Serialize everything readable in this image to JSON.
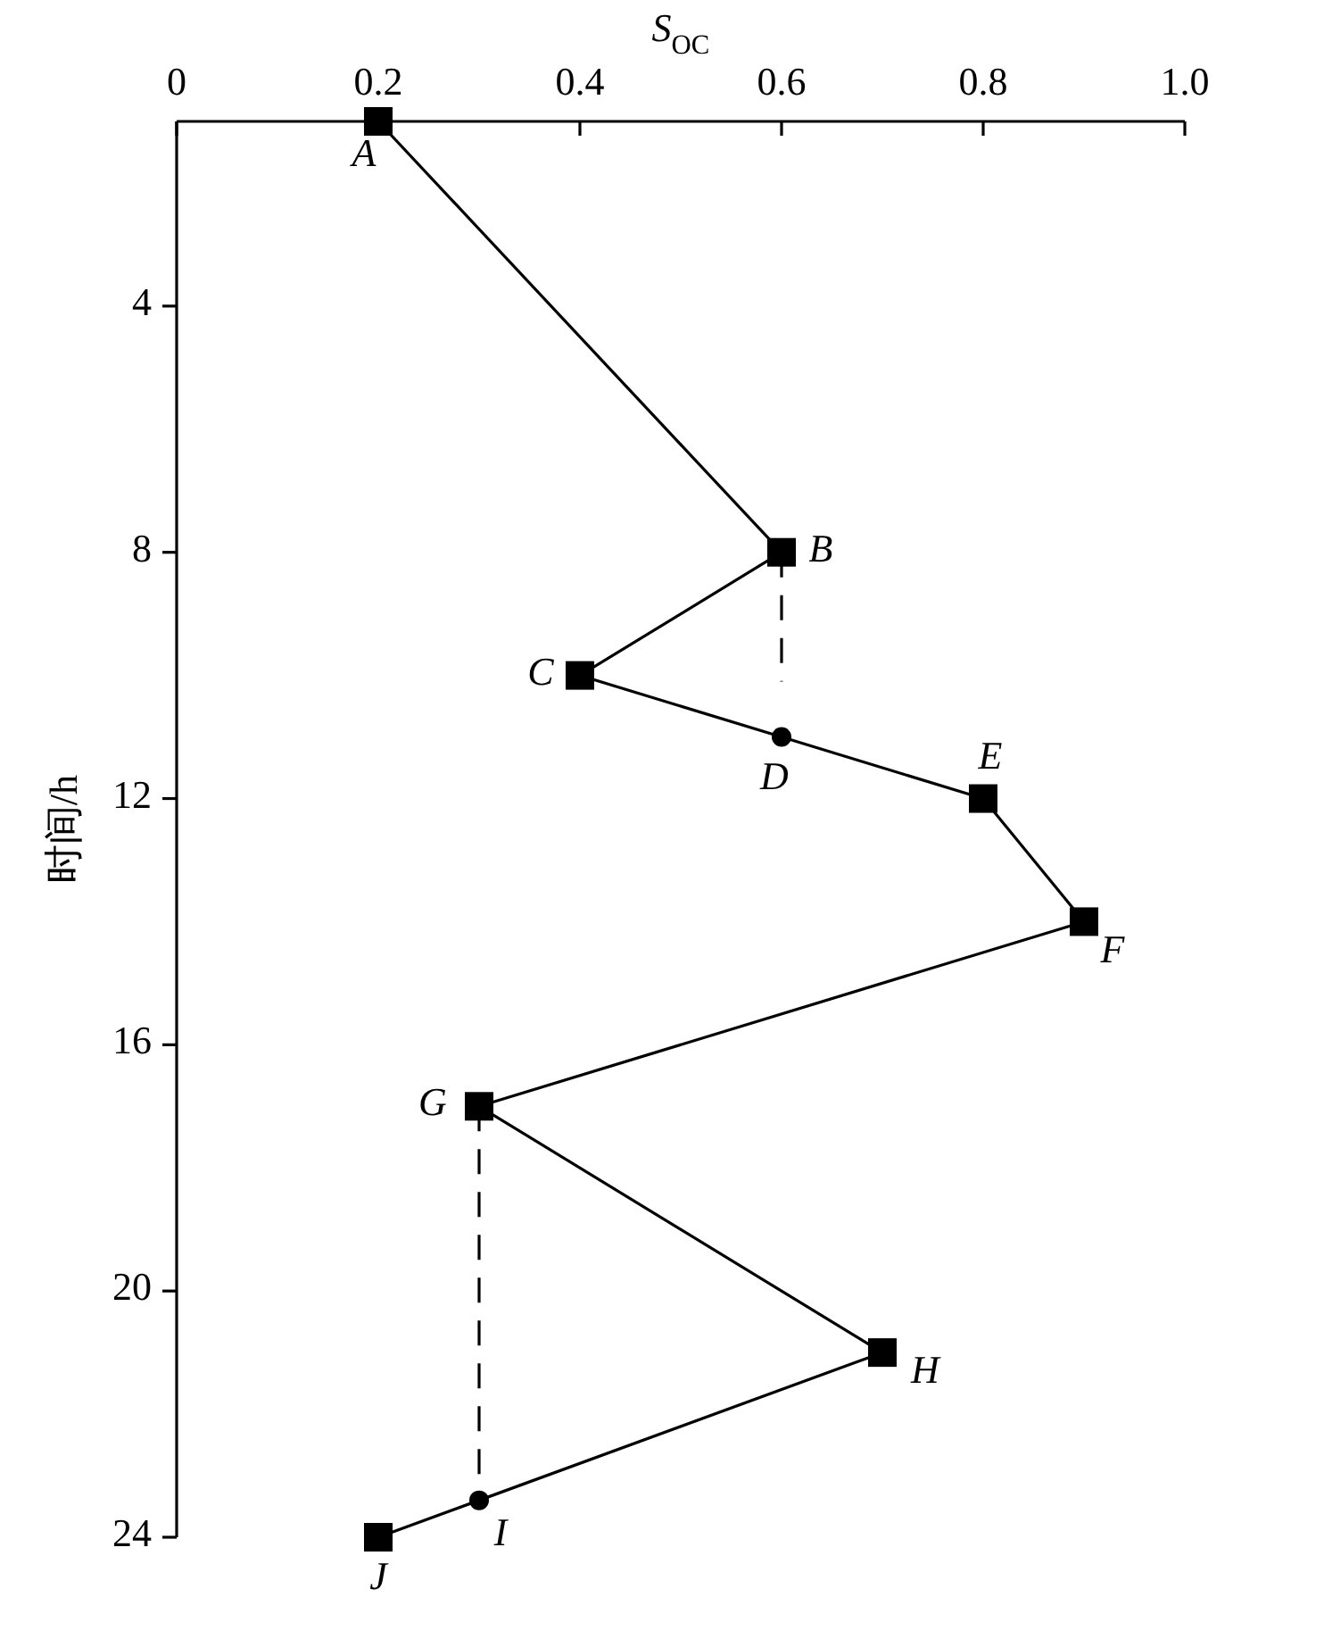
{
  "chart_data": {
    "type": "line",
    "xlabel": "*S*$_{OC}$",
    "ylabel": "时间/h",
    "xlim": [
      0,
      1
    ],
    "xticks": [
      0,
      0.2,
      0.4,
      0.6,
      0.8,
      {
        "value": 1,
        "label": "1.0"
      }
    ],
    "ylim": [
      24,
      1
    ],
    "yticks": [
      4,
      8,
      12,
      16,
      20,
      24
    ],
    "grid": false,
    "series": [
      {
        "color": "#000000",
        "marker": "none",
        "line_style": "solid",
        "x": [
          0.2,
          0.6,
          0.4,
          0.6,
          0.8,
          0.9,
          0.3,
          0.7,
          0.3,
          0.2
        ],
        "values": [
          1,
          8,
          10,
          11,
          12,
          14,
          17,
          21,
          23.4,
          24
        ]
      },
      {
        "type": "scatter",
        "color": "#000000",
        "marker": "square",
        "x": [
          0.2,
          0.6,
          0.4,
          0.8,
          0.9,
          0.3,
          0.7,
          0.2
        ],
        "values": [
          1,
          8,
          10,
          12,
          14,
          17,
          21,
          24
        ]
      },
      {
        "type": "scatter",
        "color": "#000000",
        "marker": "circle",
        "x": [
          0.6,
          0.3
        ],
        "values": [
          11,
          23.4
        ]
      },
      {
        "color": "#000000",
        "marker": "none",
        "line_style": "dashed",
        "x": [
          0.6,
          0.6
        ],
        "values": [
          8,
          10.1
        ]
      },
      {
        "color": "#000000",
        "marker": "none",
        "line_style": "dashed",
        "x": [
          0.3,
          0.3
        ],
        "values": [
          17,
          23.4
        ]
      }
    ],
    "annotations": [
      {
        "text": "*A*",
        "x": 0.2,
        "y": 1
      },
      {
        "text": "*B*",
        "x": 0.6,
        "y": 8
      },
      {
        "text": "*C*",
        "x": 0.4,
        "y": 10
      },
      {
        "text": "*D*",
        "x": 0.6,
        "y": 11
      },
      {
        "text": "*E*",
        "x": 0.8,
        "y": 12
      },
      {
        "text": "*F*",
        "x": 0.9,
        "y": 14
      },
      {
        "text": "*G*",
        "x": 0.3,
        "y": 17
      },
      {
        "text": "*H*",
        "x": 0.7,
        "y": 21
      },
      {
        "text": "*I*",
        "x": 0.3,
        "y": 23.4
      },
      {
        "text": "*J*",
        "x": 0.2,
        "y": 24
      }
    ]
  }
}
